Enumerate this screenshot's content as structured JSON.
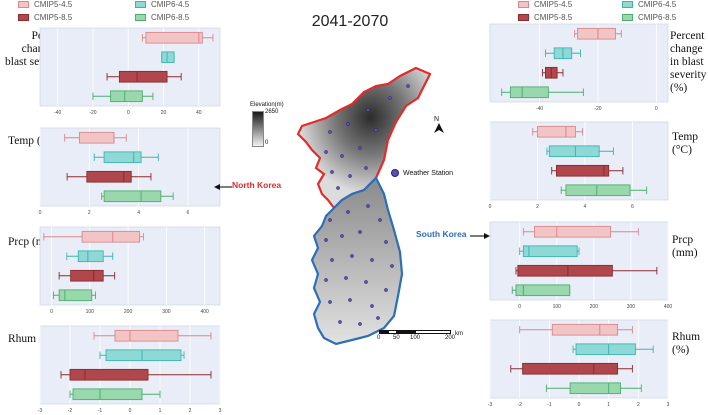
{
  "title": "2041-2070",
  "legend": [
    {
      "label": "CMIP5-4.5",
      "color": "#d9888c",
      "fill": "#f2c4c6"
    },
    {
      "label": "CMIP5-8.5",
      "color": "#8c2a2e",
      "fill": "#b0474c"
    },
    {
      "label": "CMIP6-4.5",
      "color": "#3bb5b0",
      "fill": "#8ed9d6"
    },
    {
      "label": "CMIP6-8.5",
      "color": "#4caf6e",
      "fill": "#98d8ac"
    }
  ],
  "variables": {
    "blast": "Percent change in blast severity (%)",
    "temp": "Temp (°C)",
    "prcp": "Prcp (mm)",
    "rhum": "Rhum (%)"
  },
  "map": {
    "elevation_title": "Elevation(m)",
    "elevation_max": "2650",
    "elevation_min": "0",
    "north_label": "N",
    "station_legend": "Weather Station",
    "north_korea": "North Korea",
    "south_korea": "South Korea",
    "scale_ticks": [
      "0",
      "50",
      "100",
      "200"
    ],
    "scale_unit": "km"
  },
  "chart_data": [
    {
      "type": "boxplot",
      "panel": "North Korea – blast severity",
      "x_ticks": [
        "-40",
        "-20",
        "0",
        "20",
        "40"
      ],
      "xlim": [
        -50,
        52
      ],
      "series": [
        {
          "name": "CMIP5-4.5",
          "whisker": [
            8,
            48
          ],
          "q1": 10,
          "median": 40,
          "q3": 42
        },
        {
          "name": "CMIP6-4.5",
          "whisker": [
            19,
            26
          ],
          "q1": 19,
          "median": 22,
          "q3": 26
        },
        {
          "name": "CMIP5-8.5",
          "whisker": [
            -12,
            30
          ],
          "q1": -5,
          "median": 5,
          "q3": 22
        },
        {
          "name": "CMIP6-8.5",
          "whisker": [
            -20,
            14
          ],
          "q1": -10,
          "median": -2,
          "q3": 8
        }
      ]
    },
    {
      "type": "boxplot",
      "panel": "North Korea – Temp",
      "x_ticks": [
        "0",
        "2",
        "4",
        "6"
      ],
      "xlim": [
        0,
        7.3
      ],
      "series": [
        {
          "name": "CMIP5-4.5",
          "whisker": [
            1.0,
            3.5
          ],
          "q1": 1.6,
          "median": 3.0,
          "q3": 3.0
        },
        {
          "name": "CMIP6-4.5",
          "whisker": [
            2.2,
            4.8
          ],
          "q1": 2.6,
          "median": 3.8,
          "q3": 4.1
        },
        {
          "name": "CMIP5-8.5",
          "whisker": [
            1.1,
            4.5
          ],
          "q1": 1.9,
          "median": 3.4,
          "q3": 3.7
        },
        {
          "name": "CMIP6-8.5",
          "whisker": [
            2.5,
            5.4
          ],
          "q1": 2.6,
          "median": 4.1,
          "q3": 4.9
        }
      ]
    },
    {
      "type": "boxplot",
      "panel": "North Korea – Prcp",
      "x_ticks": [
        "0",
        "100",
        "200",
        "300",
        "400"
      ],
      "xlim": [
        -30,
        440
      ],
      "series": [
        {
          "name": "CMIP5-4.5",
          "whisker": [
            -20,
            240
          ],
          "q1": 80,
          "median": 160,
          "q3": 230
        },
        {
          "name": "CMIP6-4.5",
          "whisker": [
            40,
            160
          ],
          "q1": 70,
          "median": 95,
          "q3": 135
        },
        {
          "name": "CMIP5-8.5",
          "whisker": [
            20,
            165
          ],
          "q1": 50,
          "median": 110,
          "q3": 135
        },
        {
          "name": "CMIP6-8.5",
          "whisker": [
            5,
            115
          ],
          "q1": 20,
          "median": 35,
          "q3": 105
        }
      ]
    },
    {
      "type": "boxplot",
      "panel": "North Korea – Rhum",
      "x_ticks": [
        "-3",
        "-2",
        "-1",
        "0",
        "1",
        "2",
        "3"
      ],
      "xlim": [
        -3,
        3
      ],
      "series": [
        {
          "name": "CMIP5-4.5",
          "whisker": [
            -1.2,
            2.7
          ],
          "q1": -0.5,
          "median": 0.0,
          "q3": 1.6
        },
        {
          "name": "CMIP6-4.5",
          "whisker": [
            -1.0,
            1.8
          ],
          "q1": -0.8,
          "median": 0.4,
          "q3": 1.7
        },
        {
          "name": "CMIP5-8.5",
          "whisker": [
            -2.3,
            2.7
          ],
          "q1": -2.0,
          "median": -1.5,
          "q3": 0.6
        },
        {
          "name": "CMIP6-8.5",
          "whisker": [
            -2.0,
            1.0
          ],
          "q1": -1.9,
          "median": -1.0,
          "q3": 0.4
        }
      ]
    },
    {
      "type": "boxplot",
      "panel": "South Korea – blast severity",
      "x_ticks": [
        "-40",
        "-20",
        "0"
      ],
      "xlim": [
        -57,
        4
      ],
      "series": [
        {
          "name": "CMIP5-4.5",
          "whisker": [
            -28,
            -12
          ],
          "q1": -27,
          "median": -20,
          "q3": -14
        },
        {
          "name": "CMIP6-4.5",
          "whisker": [
            -38,
            -26
          ],
          "q1": -35,
          "median": -32,
          "q3": -29
        },
        {
          "name": "CMIP5-8.5",
          "whisker": [
            -39,
            -32
          ],
          "q1": -38,
          "median": -36,
          "q3": -34
        },
        {
          "name": "CMIP6-8.5",
          "whisker": [
            -53,
            -25
          ],
          "q1": -50,
          "median": -46,
          "q3": -37
        }
      ]
    },
    {
      "type": "boxplot",
      "panel": "South Korea – Temp",
      "x_ticks": [
        "0",
        "2",
        "4",
        "6"
      ],
      "xlim": [
        0,
        7.5
      ],
      "series": [
        {
          "name": "CMIP5-4.5",
          "whisker": [
            1.8,
            3.9
          ],
          "q1": 2.0,
          "median": 3.2,
          "q3": 3.6
        },
        {
          "name": "CMIP6-4.5",
          "whisker": [
            2.4,
            5.2
          ],
          "q1": 2.5,
          "median": 3.6,
          "q3": 4.6
        },
        {
          "name": "CMIP5-8.5",
          "whisker": [
            2.6,
            5.6
          ],
          "q1": 2.8,
          "median": 4.8,
          "q3": 5.0
        },
        {
          "name": "CMIP6-8.5",
          "whisker": [
            3.0,
            6.6
          ],
          "q1": 3.2,
          "median": 4.5,
          "q3": 5.9
        }
      ]
    },
    {
      "type": "boxplot",
      "panel": "South Korea – Prcp",
      "x_ticks": [
        "0",
        "100",
        "200",
        "300",
        "400"
      ],
      "xlim": [
        -80,
        400
      ],
      "series": [
        {
          "name": "CMIP5-4.5",
          "whisker": [
            10,
            320
          ],
          "q1": 40,
          "median": 100,
          "q3": 245
        },
        {
          "name": "CMIP6-4.5",
          "whisker": [
            0,
            160
          ],
          "q1": 10,
          "median": 25,
          "q3": 155
        },
        {
          "name": "CMIP5-8.5",
          "whisker": [
            -10,
            370
          ],
          "q1": -5,
          "median": 130,
          "q3": 250
        },
        {
          "name": "CMIP6-8.5",
          "whisker": [
            -20,
            135
          ],
          "q1": -10,
          "median": 10,
          "q3": 135
        }
      ]
    },
    {
      "type": "boxplot",
      "panel": "South Korea – Rhum",
      "x_ticks": [
        "-3",
        "-2",
        "-1",
        "0",
        "1",
        "2",
        "3"
      ],
      "xlim": [
        -3,
        3
      ],
      "series": [
        {
          "name": "CMIP5-4.5",
          "whisker": [
            -2.0,
            1.8
          ],
          "q1": -0.9,
          "median": 0.7,
          "q3": 1.3
        },
        {
          "name": "CMIP6-4.5",
          "whisker": [
            -0.2,
            2.5
          ],
          "q1": -0.1,
          "median": 1.0,
          "q3": 1.9
        },
        {
          "name": "CMIP5-8.5",
          "whisker": [
            -2.3,
            1.8
          ],
          "q1": -1.9,
          "median": 0.5,
          "q3": 1.3
        },
        {
          "name": "CMIP6-8.5",
          "whisker": [
            -1.1,
            2.1
          ],
          "q1": -0.3,
          "median": 1.0,
          "q3": 1.4
        }
      ]
    }
  ]
}
